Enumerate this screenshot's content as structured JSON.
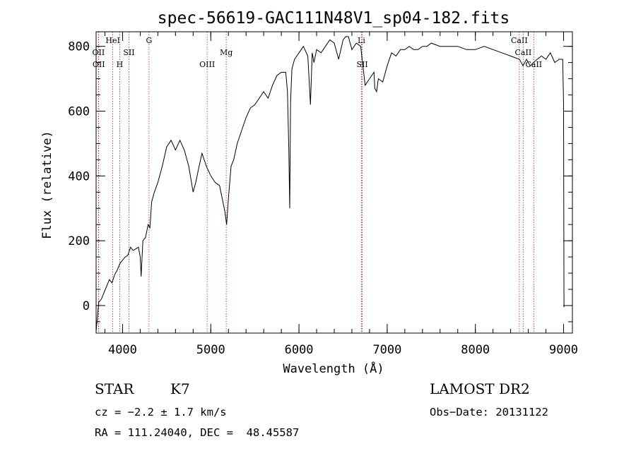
{
  "chart_data": {
    "type": "line",
    "title": "spec-56619-GAC111N48V1_sp04-182.fits",
    "xlabel": "Wavelength (Å)",
    "ylabel": "Flux (relative)",
    "xlim": [
      3700,
      9100
    ],
    "ylim": [
      -85,
      845
    ],
    "xticks": [
      4000,
      5000,
      6000,
      7000,
      8000,
      9000
    ],
    "yticks": [
      0,
      200,
      400,
      600,
      800
    ],
    "series": [
      {
        "name": "flux",
        "x": [
          3700,
          3730,
          3760,
          3790,
          3820,
          3850,
          3880,
          3910,
          3940,
          3970,
          4000,
          4030,
          4060,
          4090,
          4120,
          4150,
          4180,
          4200,
          4210,
          4230,
          4260,
          4290,
          4310,
          4330,
          4360,
          4400,
          4450,
          4500,
          4550,
          4600,
          4650,
          4700,
          4750,
          4800,
          4830,
          4860,
          4900,
          4950,
          5000,
          5050,
          5100,
          5130,
          5160,
          5180,
          5200,
          5230,
          5260,
          5300,
          5350,
          5400,
          5450,
          5500,
          5550,
          5600,
          5650,
          5700,
          5750,
          5800,
          5850,
          5870,
          5885,
          5895,
          5905,
          5920,
          5950,
          6000,
          6050,
          6100,
          6130,
          6150,
          6170,
          6200,
          6250,
          6300,
          6350,
          6400,
          6450,
          6500,
          6530,
          6560,
          6580,
          6600,
          6650,
          6700,
          6750,
          6800,
          6850,
          6860,
          6880,
          6900,
          6950,
          7000,
          7050,
          7100,
          7150,
          7200,
          7250,
          7300,
          7350,
          7400,
          7450,
          7500,
          7600,
          7700,
          7800,
          7900,
          8000,
          8100,
          8200,
          8300,
          8400,
          8500,
          8540,
          8580,
          8620,
          8660,
          8700,
          8750,
          8800,
          8850,
          8900,
          8950,
          8990,
          9000,
          9005
        ],
        "y": [
          -80,
          10,
          20,
          40,
          60,
          80,
          70,
          95,
          110,
          130,
          140,
          150,
          155,
          180,
          170,
          175,
          180,
          150,
          90,
          200,
          210,
          250,
          240,
          320,
          350,
          380,
          430,
          490,
          510,
          480,
          510,
          480,
          430,
          350,
          380,
          420,
          470,
          430,
          400,
          380,
          370,
          330,
          290,
          250,
          330,
          430,
          450,
          500,
          540,
          580,
          610,
          620,
          640,
          660,
          640,
          680,
          710,
          720,
          720,
          660,
          480,
          300,
          630,
          730,
          760,
          780,
          800,
          770,
          620,
          780,
          750,
          790,
          780,
          800,
          820,
          810,
          760,
          820,
          830,
          830,
          810,
          790,
          810,
          800,
          680,
          700,
          720,
          670,
          660,
          700,
          690,
          740,
          780,
          770,
          790,
          790,
          800,
          790,
          790,
          800,
          800,
          810,
          800,
          800,
          800,
          790,
          790,
          800,
          790,
          780,
          770,
          760,
          740,
          760,
          740,
          750,
          760,
          770,
          760,
          780,
          750,
          760,
          760,
          620,
          -5
        ]
      }
    ],
    "line_markers": [
      {
        "label": "OII",
        "wave": 3727,
        "row": 2
      },
      {
        "label": "OII",
        "wave": 3730,
        "row": 3
      },
      {
        "label": "HeI",
        "wave": 3889,
        "row": 1
      },
      {
        "label": "H",
        "wave": 3968,
        "row": 3
      },
      {
        "label": "SII",
        "wave": 4072,
        "row": 2
      },
      {
        "label": "G",
        "wave": 4300,
        "row": 1
      },
      {
        "label": "OIII",
        "wave": 4959,
        "row": 3
      },
      {
        "label": "Mg",
        "wave": 5175,
        "row": 2
      },
      {
        "label": "Li",
        "wave": 6708,
        "row": 1
      },
      {
        "label": "SII",
        "wave": 6717,
        "row": 3
      },
      {
        "label": "CaII",
        "wave": 8498,
        "row": 1
      },
      {
        "label": "CaII",
        "wave": 8542,
        "row": 2
      },
      {
        "label": "CaII",
        "wave": 8662,
        "row": 3
      }
    ]
  },
  "info": {
    "object_class": "STAR",
    "subclass": "K7",
    "survey": "LAMOST DR2",
    "cz": "cz = −2.2 ± 1.7 km/s",
    "obs_date": "Obs−Date: 20131122",
    "coords": "RA = 111.24040, DEC =  48.45587"
  }
}
